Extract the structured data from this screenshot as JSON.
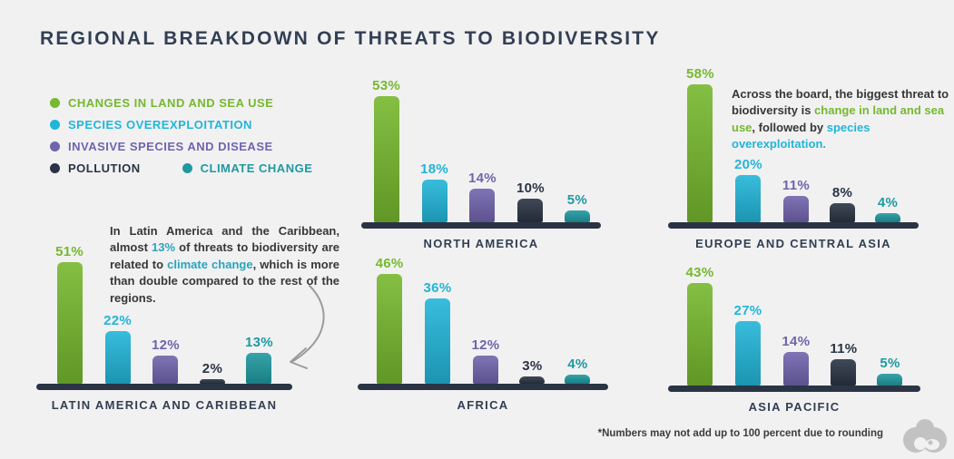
{
  "title": "REGIONAL BREAKDOWN OF THREATS TO BIODIVERSITY",
  "colors": {
    "background": "#f1f1f2",
    "title_text": "#333f54",
    "baseline": "#2a3444",
    "land_use_green": "#76b82e",
    "overexploitation_cyan": "#22b5d8",
    "invasive_purple": "#7164ad",
    "pollution_navy": "#2a3444",
    "climate_teal": "#1f99a0"
  },
  "legend": {
    "items": [
      {
        "label": "CHANGES IN LAND AND SEA USE",
        "color": "#76b82e"
      },
      {
        "label": "SPECIES OVEREXPLOITATION",
        "color": "#22b5d8"
      },
      {
        "label": "INVASIVE SPECIES AND DISEASE",
        "color": "#7164ad"
      },
      {
        "label": "POLLUTION",
        "color": "#2a3444"
      },
      {
        "label": "CLIMATE CHANGE",
        "color": "#1f99a0"
      }
    ]
  },
  "chart_data": {
    "type": "bar",
    "unit": "%",
    "title": "REGIONAL BREAKDOWN OF THREATS TO BIODIVERSITY",
    "categories": [
      "CHANGES IN LAND AND SEA USE",
      "SPECIES OVEREXPLOITATION",
      "INVASIVE SPECIES AND DISEASE",
      "POLLUTION",
      "CLIMATE CHANGE"
    ],
    "series_colors": [
      "#76b82e",
      "#22b5d8",
      "#7164ad",
      "#2a3444",
      "#1f99a0"
    ],
    "ylim": [
      0,
      60
    ],
    "grid": false,
    "legend_position": "top-left",
    "regions": [
      {
        "name": "NORTH AMERICA",
        "values": [
          53,
          18,
          14,
          10,
          5
        ]
      },
      {
        "name": "EUROPE AND CENTRAL ASIA",
        "values": [
          58,
          20,
          11,
          8,
          4
        ]
      },
      {
        "name": "LATIN AMERICA AND CARIBBEAN",
        "values": [
          51,
          22,
          12,
          2,
          13
        ]
      },
      {
        "name": "AFRICA",
        "values": [
          46,
          36,
          12,
          3,
          4
        ]
      },
      {
        "name": "ASIA PACIFIC",
        "values": [
          43,
          27,
          14,
          11,
          5
        ]
      }
    ]
  },
  "annotations": {
    "europe": {
      "segments": [
        {
          "text": "Across the board, the biggest threat to biodiversity is ",
          "color": "#373737"
        },
        {
          "text": "change in land and sea use",
          "color": "#76b82e"
        },
        {
          "text": ", followed by ",
          "color": "#373737"
        },
        {
          "text": "species overexploitation.",
          "color": "#22b5d8"
        }
      ]
    },
    "latin_america": {
      "segments": [
        {
          "text": "In Latin America and the Caribbean, almost ",
          "color": "#373737"
        },
        {
          "text": "13%",
          "color": "#2ba4bd"
        },
        {
          "text": " of threats to biodiversity are related to ",
          "color": "#373737"
        },
        {
          "text": "climate change",
          "color": "#2ba4bd"
        },
        {
          "text": ", which is more than double compared to the rest of the regions.",
          "color": "#373737"
        }
      ]
    }
  },
  "footnote": "*Numbers may not add up to 100 percent due to rounding",
  "icons": {
    "arrow": "curved-arrow",
    "logo": "binoculars-logo"
  }
}
